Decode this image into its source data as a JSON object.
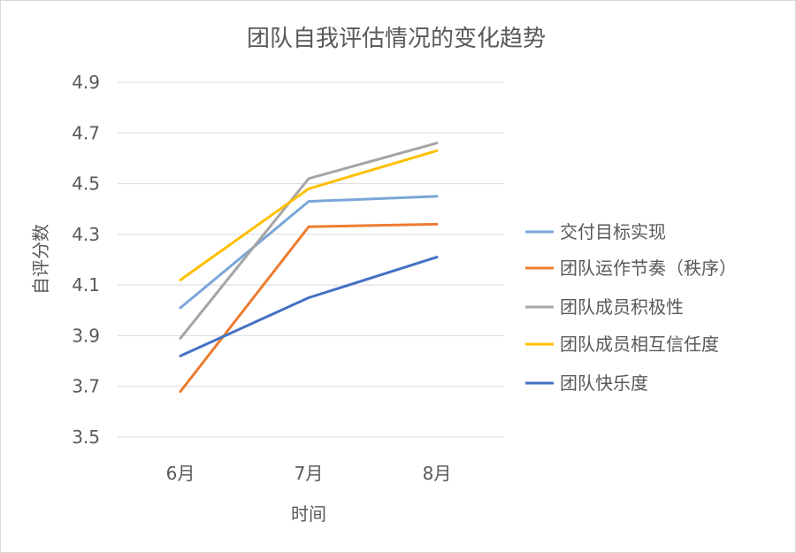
{
  "chart_data": {
    "type": "line",
    "title": "团队自我评估情况的变化趋势",
    "xlabel": "时间",
    "ylabel": "自评分数",
    "categories": [
      "6月",
      "7月",
      "8月"
    ],
    "ylim": [
      3.5,
      4.9
    ],
    "yticks": [
      "3.5",
      "3.7",
      "3.9",
      "4.1",
      "4.3",
      "4.5",
      "4.7",
      "4.9"
    ],
    "grid": true,
    "legend_position": "right",
    "series": [
      {
        "name": "交付目标实现",
        "color": "#7aa6d8",
        "values": [
          4.01,
          4.43,
          4.45
        ]
      },
      {
        "name": "团队运作节奏（秩序）",
        "color": "#ed7d31",
        "values": [
          3.68,
          4.33,
          4.34
        ]
      },
      {
        "name": "团队成员积极性",
        "color": "#a5a5a5",
        "values": [
          3.89,
          4.52,
          4.66
        ]
      },
      {
        "name": "团队成员相互信任度",
        "color": "#ffc000",
        "values": [
          4.12,
          4.48,
          4.63
        ]
      },
      {
        "name": "团队快乐度",
        "color": "#4472c4",
        "values": [
          3.82,
          4.05,
          4.21
        ]
      }
    ]
  }
}
